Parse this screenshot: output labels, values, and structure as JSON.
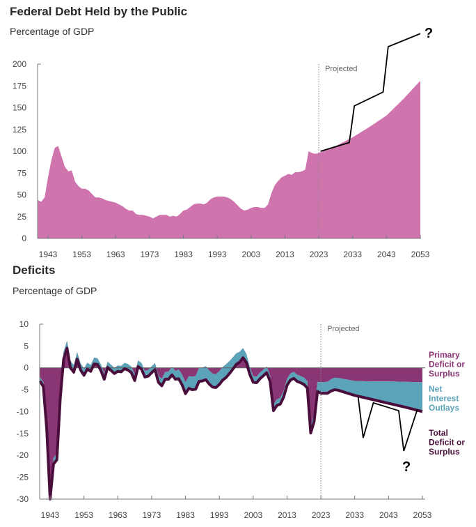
{
  "chart_data": [
    {
      "type": "area",
      "title": "Federal Debt Held by the Public",
      "subtitle": "Percentage of GDP",
      "xlabel": "",
      "ylabel": "",
      "xlim": [
        1940,
        2053
      ],
      "ylim": [
        0,
        200
      ],
      "yticks": [
        0,
        25,
        50,
        75,
        100,
        125,
        150,
        175,
        200
      ],
      "xticks": [
        1943,
        1953,
        1963,
        1973,
        1983,
        1993,
        2003,
        2013,
        2023,
        2033,
        2043,
        2053
      ],
      "projected_label": "Projected",
      "projected_start": 2023,
      "color": "#cf74ad",
      "series": [
        {
          "name": "Debt held by the public",
          "x": [
            1940,
            1941,
            1942,
            1943,
            1944,
            1945,
            1946,
            1947,
            1948,
            1949,
            1950,
            1951,
            1952,
            1953,
            1954,
            1955,
            1956,
            1957,
            1958,
            1959,
            1960,
            1961,
            1962,
            1963,
            1964,
            1965,
            1966,
            1967,
            1968,
            1969,
            1970,
            1971,
            1972,
            1973,
            1974,
            1975,
            1976,
            1977,
            1978,
            1979,
            1980,
            1981,
            1982,
            1983,
            1984,
            1985,
            1986,
            1987,
            1988,
            1989,
            1990,
            1991,
            1992,
            1993,
            1994,
            1995,
            1996,
            1997,
            1998,
            1999,
            2000,
            2001,
            2002,
            2003,
            2004,
            2005,
            2006,
            2007,
            2008,
            2009,
            2010,
            2011,
            2012,
            2013,
            2014,
            2015,
            2016,
            2017,
            2018,
            2019,
            2020,
            2021,
            2022,
            2023,
            2028,
            2033,
            2038,
            2043,
            2048,
            2053
          ],
          "values": [
            44,
            42,
            47,
            70,
            90,
            104,
            106,
            94,
            82,
            77,
            78,
            65,
            60,
            57,
            57,
            55,
            51,
            47,
            47,
            46,
            44,
            43,
            42,
            41,
            39,
            37,
            34,
            32,
            32,
            28,
            27,
            27,
            26,
            25,
            23,
            25,
            27,
            27,
            27,
            25,
            26,
            25,
            28,
            32,
            33,
            36,
            39,
            40,
            40,
            39,
            41,
            45,
            47,
            48,
            48,
            48,
            47,
            45,
            42,
            38,
            34,
            32,
            33,
            35,
            36,
            36,
            35,
            35,
            39,
            52,
            61,
            66,
            70,
            72,
            74,
            73,
            76,
            76,
            77,
            79,
            100,
            98,
            97,
            98,
            106,
            116,
            128,
            141,
            160,
            181
          ]
        }
      ],
      "annotation": {
        "label": "?",
        "line_x": [
          2023.5,
          2032,
          2033.5,
          2042,
          2043.5,
          2053
        ],
        "line_y": [
          100,
          110,
          152,
          168,
          220,
          235
        ]
      }
    },
    {
      "type": "area",
      "title": "Deficits",
      "subtitle": "Percentage of GDP",
      "xlabel": "",
      "ylabel": "",
      "xlim": [
        1940,
        2053
      ],
      "ylim": [
        -30,
        10
      ],
      "yticks": [
        10,
        5,
        0,
        -5,
        -10,
        -15,
        -20,
        -25,
        -30
      ],
      "xticks": [
        1943,
        1953,
        1963,
        1973,
        1983,
        1993,
        2003,
        2013,
        2023,
        2033,
        2043,
        2053
      ],
      "projected_label": "Projected",
      "projected_start": 2023,
      "legend_placement": "right",
      "series": [
        {
          "name": "Primary Deficit or Surplus",
          "label_lines": [
            "Primary",
            "Deficit or",
            "Surplus"
          ],
          "color": "#8a3574"
        },
        {
          "name": "Net Interest Outlays",
          "label_lines": [
            "Net",
            "Interest",
            "Outlays"
          ],
          "color": "#5aa3b8",
          "x": [
            1940,
            1947,
            1950,
            1960,
            1970,
            1975,
            1980,
            1985,
            1990,
            1995,
            2000,
            2003,
            2010,
            2020,
            2023,
            2028,
            2033,
            2038,
            2043,
            2048,
            2053
          ],
          "values": [
            0.9,
            1.7,
            1.6,
            1.3,
            1.4,
            1.5,
            1.9,
            3.0,
            3.1,
            3.0,
            2.2,
            1.4,
            1.4,
            1.6,
            2.5,
            2.8,
            3.3,
            4.1,
            5.0,
            5.8,
            6.7
          ]
        },
        {
          "name": "Total Deficit or Surplus",
          "label_lines": [
            "Total",
            "Deficit or",
            "Surplus"
          ],
          "color": "#4a0e3c",
          "x": [
            1940,
            1941,
            1942,
            1943,
            1944,
            1945,
            1946,
            1947,
            1948,
            1949,
            1950,
            1951,
            1952,
            1953,
            1954,
            1955,
            1956,
            1957,
            1958,
            1959,
            1960,
            1961,
            1962,
            1963,
            1964,
            1965,
            1966,
            1967,
            1968,
            1969,
            1970,
            1971,
            1972,
            1973,
            1974,
            1975,
            1976,
            1977,
            1978,
            1979,
            1980,
            1981,
            1982,
            1983,
            1984,
            1985,
            1986,
            1987,
            1988,
            1989,
            1990,
            1991,
            1992,
            1993,
            1994,
            1995,
            1996,
            1997,
            1998,
            1999,
            2000,
            2001,
            2002,
            2003,
            2004,
            2005,
            2006,
            2007,
            2008,
            2009,
            2010,
            2011,
            2012,
            2013,
            2014,
            2015,
            2016,
            2017,
            2018,
            2019,
            2020,
            2021,
            2022,
            2023,
            2024,
            2025,
            2026,
            2027,
            2028,
            2033,
            2038,
            2043,
            2048,
            2053
          ],
          "values": [
            -3,
            -4.3,
            -14,
            -30,
            -22,
            -21,
            -7,
            2,
            4.5,
            0,
            -1,
            2,
            -0.5,
            -1.7,
            -0.3,
            -0.8,
            0.9,
            0.8,
            -0.6,
            -2.6,
            0.1,
            -0.6,
            -1.3,
            -0.8,
            -0.9,
            -0.2,
            -0.5,
            -1.1,
            -2.9,
            0.3,
            -0.3,
            -2.1,
            -1.9,
            -1.1,
            -0.4,
            -3.3,
            -4.1,
            -2.6,
            -2.6,
            -1.6,
            -2.6,
            -2.5,
            -3.9,
            -5.9,
            -4.7,
            -5,
            -4.9,
            -3.1,
            -3,
            -2.7,
            -3.7,
            -4.4,
            -4.5,
            -3.8,
            -2.8,
            -2.2,
            -1.3,
            -0.3,
            0.8,
            1.3,
            2.3,
            1.2,
            -1.5,
            -3.3,
            -3.4,
            -2.5,
            -1.8,
            -1.1,
            -3.1,
            -9.8,
            -8.6,
            -8.3,
            -6.7,
            -4.0,
            -2.8,
            -2.4,
            -3.1,
            -3.4,
            -3.8,
            -4.6,
            -14.9,
            -12.3,
            -5.4,
            -5.8,
            -5.8,
            -5.8,
            -5.3,
            -5.0,
            -5.1,
            -6.3,
            -7.2,
            -8.1,
            -9.0,
            -10
          ]
        }
      ],
      "annotation": {
        "label": "?",
        "line_x": [
          2034,
          2035.5,
          2038.5,
          2046,
          2047.5,
          2051.5
        ],
        "line_y": [
          -6.6,
          -16,
          -8,
          -9.8,
          -19,
          -9.5
        ]
      }
    }
  ]
}
